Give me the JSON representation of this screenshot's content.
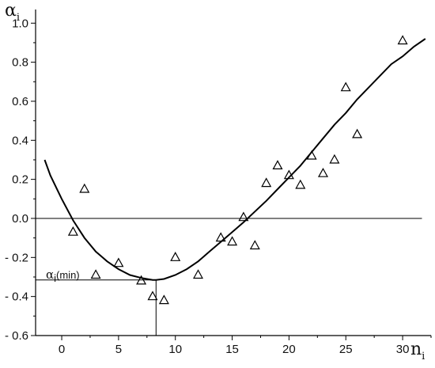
{
  "chart_data": {
    "type": "scatter",
    "x_label": {
      "symbol": "n",
      "subscript": "i"
    },
    "y_label": {
      "symbol": "α",
      "subscript": "i"
    },
    "xlim": [
      -2.3,
      32.5
    ],
    "ylim": [
      -0.6,
      1.07
    ],
    "x_ticks": [
      0,
      5,
      10,
      15,
      20,
      25,
      30
    ],
    "y_ticks": [
      -0.6,
      -0.4,
      -0.2,
      0.0,
      0.2,
      0.4,
      0.6,
      0.8,
      1.0
    ],
    "y_tick_labels": [
      "- 0.6",
      "- 0.4",
      "- 0.2",
      "0.0",
      "0.2",
      "0.4",
      "0.6",
      "0.8",
      "1.0"
    ],
    "grid": false,
    "series": [
      {
        "marker": "triangle-open",
        "x": [
          1,
          2,
          3,
          5,
          7,
          8,
          9,
          10,
          12,
          14,
          15,
          16,
          17,
          18,
          19,
          20,
          21,
          22,
          23,
          24,
          25,
          26,
          30
        ],
        "y": [
          -0.07,
          0.15,
          -0.29,
          -0.23,
          -0.32,
          -0.4,
          -0.42,
          -0.2,
          -0.29,
          -0.1,
          -0.12,
          0.005,
          -0.14,
          0.18,
          0.27,
          0.22,
          0.17,
          0.32,
          0.23,
          0.3,
          0.67,
          0.43,
          0.91
        ]
      },
      {
        "style": "line",
        "x": [
          -1.5,
          -1,
          0,
          1,
          2,
          3,
          4,
          5,
          6,
          7,
          8,
          8.3,
          9,
          10,
          11,
          12,
          13,
          14,
          15,
          16,
          17,
          18,
          19,
          20,
          21,
          22,
          23,
          24,
          25,
          26,
          27,
          28,
          29,
          30,
          31,
          32
        ],
        "y": [
          0.3,
          0.22,
          0.1,
          -0.01,
          -0.1,
          -0.17,
          -0.22,
          -0.26,
          -0.29,
          -0.305,
          -0.315,
          -0.315,
          -0.31,
          -0.29,
          -0.26,
          -0.22,
          -0.17,
          -0.12,
          -0.07,
          -0.02,
          0.035,
          0.09,
          0.15,
          0.21,
          0.27,
          0.34,
          0.41,
          0.48,
          0.54,
          0.61,
          0.67,
          0.73,
          0.79,
          0.83,
          0.88,
          0.92
        ]
      }
    ],
    "reference_lines": [
      {
        "orientation": "horizontal",
        "y": 0.0,
        "x_from": -2.3,
        "x_to": 31.7
      }
    ],
    "annotation": {
      "symbol": "α",
      "subscript": "i",
      "text": "(min)",
      "x": 8.3,
      "y": -0.315
    }
  }
}
